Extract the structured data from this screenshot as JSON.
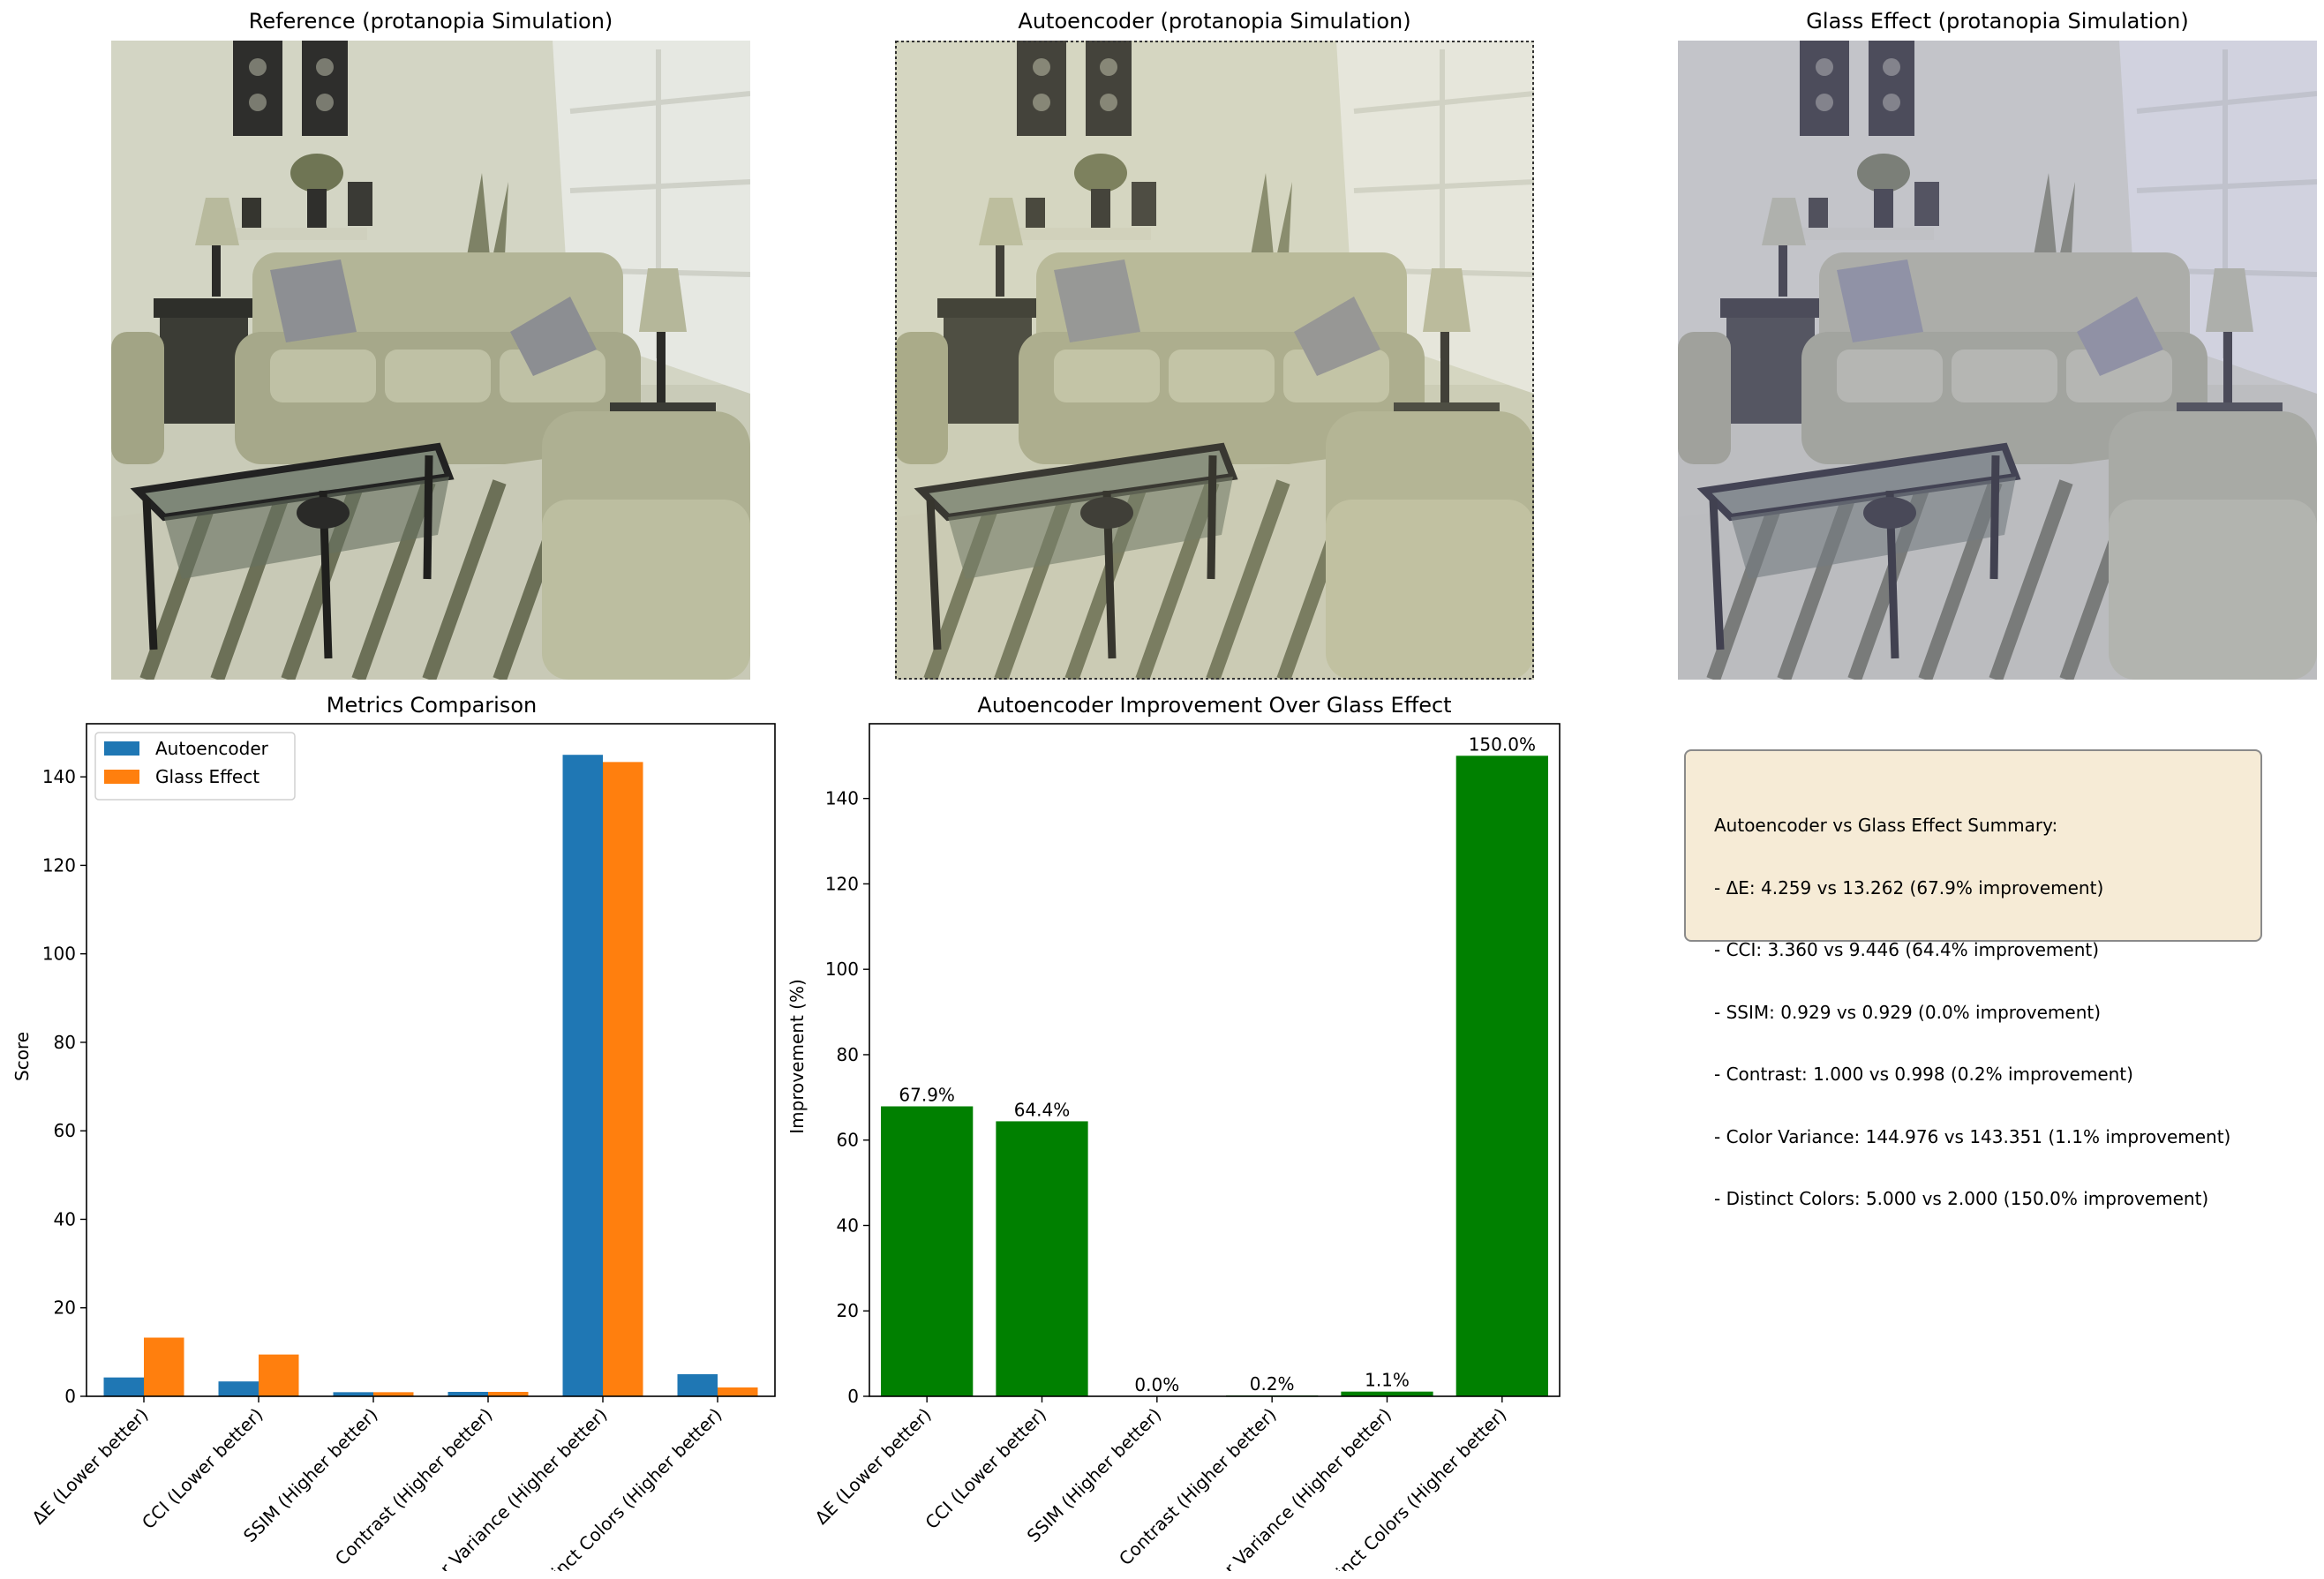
{
  "panels": {
    "reference_title": "Reference (protanopia Simulation)",
    "autoencoder_title": "Autoencoder (protanopia Simulation)",
    "glass_title": "Glass Effect (protanopia Simulation)"
  },
  "colors": {
    "autoencoder": "#1f77b4",
    "glass": "#ff7f0e",
    "improvement": "#008000",
    "summary_bg": "#f6ebd6"
  },
  "chart_data": [
    {
      "type": "bar",
      "title": "Metrics Comparison",
      "xlabel": "",
      "ylabel": "Score",
      "ylim": [
        0,
        152
      ],
      "yticks": [
        0,
        20,
        40,
        60,
        80,
        100,
        120,
        140
      ],
      "legend_position": "top-left",
      "categories": [
        "ΔE (Lower better)",
        "CCI (Lower better)",
        "SSIM (Higher better)",
        "Contrast (Higher better)",
        "Color Variance (Higher better)",
        "Distinct Colors (Higher better)"
      ],
      "series": [
        {
          "name": "Autoencoder",
          "values": [
            4.259,
            3.36,
            0.929,
            1.0,
            144.976,
            5.0
          ]
        },
        {
          "name": "Glass Effect",
          "values": [
            13.262,
            9.446,
            0.929,
            0.998,
            143.351,
            2.0
          ]
        }
      ]
    },
    {
      "type": "bar",
      "title": "Autoencoder Improvement Over Glass Effect",
      "xlabel": "",
      "ylabel": "Improvement (%)",
      "ylim": [
        0,
        157.5
      ],
      "yticks": [
        0,
        20,
        40,
        60,
        80,
        100,
        120,
        140
      ],
      "categories": [
        "ΔE (Lower better)",
        "CCI (Lower better)",
        "SSIM (Higher better)",
        "Contrast (Higher better)",
        "Color Variance (Higher better)",
        "Distinct Colors (Higher better)"
      ],
      "values": [
        67.9,
        64.4,
        0.0,
        0.2,
        1.1,
        150.0
      ],
      "data_labels": [
        "67.9%",
        "64.4%",
        "0.0%",
        "0.2%",
        "1.1%",
        "150.0%"
      ]
    }
  ],
  "summary": {
    "heading": "Autoencoder vs Glass Effect Summary:",
    "lines": [
      "- ΔE: 4.259 vs 13.262 (67.9% improvement)",
      "- CCI: 3.360 vs 9.446 (64.4% improvement)",
      "- SSIM: 0.929 vs 0.929 (0.0% improvement)",
      "- Contrast: 1.000 vs 0.998 (0.2% improvement)",
      "- Color Variance: 144.976 vs 143.351 (1.1% improvement)",
      "- Distinct Colors: 5.000 vs 2.000 (150.0% improvement)"
    ]
  }
}
